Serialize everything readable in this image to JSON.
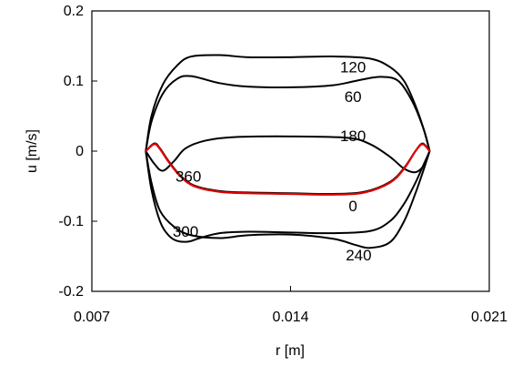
{
  "chart_data": {
    "type": "line",
    "title": "",
    "xlabel": "r  [m]",
    "ylabel": "u [m/s]",
    "xlim": [
      0.007,
      0.021
    ],
    "ylim": [
      -0.2,
      0.2
    ],
    "xticks": [
      "0.007",
      "0.014",
      "0.021"
    ],
    "yticks": [
      "0.2",
      "0.1",
      "0",
      "-0.1",
      "-0.2"
    ],
    "xtick_values": [
      0.007,
      0.014,
      0.021
    ],
    "ytick_values": [
      0.2,
      0.1,
      0,
      -0.1,
      -0.2
    ],
    "grid": false,
    "legend": "none",
    "series": [
      {
        "label": "0",
        "color": "#e00000",
        "label_at": [
          0.0162,
          -0.078
        ],
        "points": [
          [
            0.0089,
            0.0
          ],
          [
            0.0092,
            0.01
          ],
          [
            0.0094,
            0.003
          ],
          [
            0.0097,
            -0.015
          ],
          [
            0.0101,
            -0.035
          ],
          [
            0.0106,
            -0.05
          ],
          [
            0.0115,
            -0.058
          ],
          [
            0.0125,
            -0.06
          ],
          [
            0.014,
            -0.061
          ],
          [
            0.0155,
            -0.062
          ],
          [
            0.0166,
            -0.059
          ],
          [
            0.0175,
            -0.045
          ],
          [
            0.018,
            -0.025
          ],
          [
            0.0184,
            0.0
          ],
          [
            0.01865,
            0.01
          ],
          [
            0.0189,
            0.0
          ]
        ]
      },
      {
        "label": "60",
        "color": "#000000",
        "label_at": [
          0.0162,
          0.078
        ],
        "points": [
          [
            0.0089,
            0.0
          ],
          [
            0.0091,
            0.042
          ],
          [
            0.0095,
            0.082
          ],
          [
            0.01,
            0.103
          ],
          [
            0.0105,
            0.107
          ],
          [
            0.0115,
            0.097
          ],
          [
            0.0125,
            0.092
          ],
          [
            0.014,
            0.091
          ],
          [
            0.0155,
            0.094
          ],
          [
            0.0165,
            0.102
          ],
          [
            0.0172,
            0.106
          ],
          [
            0.0178,
            0.1
          ],
          [
            0.0183,
            0.07
          ],
          [
            0.0187,
            0.03
          ],
          [
            0.0189,
            0.0
          ]
        ]
      },
      {
        "label": "120",
        "color": "#000000",
        "label_at": [
          0.0162,
          0.12
        ],
        "points": [
          [
            0.0089,
            0.0
          ],
          [
            0.0091,
            0.05
          ],
          [
            0.0095,
            0.095
          ],
          [
            0.01,
            0.122
          ],
          [
            0.0105,
            0.135
          ],
          [
            0.0115,
            0.137
          ],
          [
            0.0125,
            0.134
          ],
          [
            0.014,
            0.134
          ],
          [
            0.0155,
            0.135
          ],
          [
            0.0168,
            0.132
          ],
          [
            0.0175,
            0.12
          ],
          [
            0.018,
            0.1
          ],
          [
            0.0184,
            0.065
          ],
          [
            0.0187,
            0.03
          ],
          [
            0.0189,
            0.0
          ]
        ]
      },
      {
        "label": "180",
        "color": "#000000",
        "label_at": [
          0.0162,
          0.022
        ],
        "points": [
          [
            0.0089,
            0.0
          ],
          [
            0.0092,
            -0.018
          ],
          [
            0.0095,
            -0.028
          ],
          [
            0.0099,
            -0.014
          ],
          [
            0.0103,
            0.004
          ],
          [
            0.011,
            0.015
          ],
          [
            0.012,
            0.02
          ],
          [
            0.014,
            0.021
          ],
          [
            0.016,
            0.019
          ],
          [
            0.0168,
            0.01
          ],
          [
            0.0175,
            -0.008
          ],
          [
            0.018,
            -0.025
          ],
          [
            0.0184,
            -0.03
          ],
          [
            0.0187,
            -0.02
          ],
          [
            0.0189,
            0.0
          ]
        ]
      },
      {
        "label": "240",
        "color": "#000000",
        "label_at": [
          0.0164,
          -0.148
        ],
        "points": [
          [
            0.0089,
            0.0
          ],
          [
            0.0091,
            -0.045
          ],
          [
            0.0094,
            -0.085
          ],
          [
            0.0099,
            -0.108
          ],
          [
            0.0105,
            -0.12
          ],
          [
            0.0115,
            -0.124
          ],
          [
            0.0125,
            -0.12
          ],
          [
            0.014,
            -0.119
          ],
          [
            0.0155,
            -0.125
          ],
          [
            0.0163,
            -0.134
          ],
          [
            0.0168,
            -0.138
          ],
          [
            0.0175,
            -0.13
          ],
          [
            0.018,
            -0.1
          ],
          [
            0.0184,
            -0.06
          ],
          [
            0.0187,
            -0.025
          ],
          [
            0.0189,
            0.0
          ]
        ]
      },
      {
        "label": "300",
        "color": "#000000",
        "label_at": [
          0.0103,
          -0.114
        ],
        "points": [
          [
            0.0089,
            0.0
          ],
          [
            0.0091,
            -0.055
          ],
          [
            0.0094,
            -0.1
          ],
          [
            0.0097,
            -0.12
          ],
          [
            0.01,
            -0.128
          ],
          [
            0.0104,
            -0.129
          ],
          [
            0.0108,
            -0.124
          ],
          [
            0.0115,
            -0.117
          ],
          [
            0.0125,
            -0.115
          ],
          [
            0.014,
            -0.116
          ],
          [
            0.0155,
            -0.117
          ],
          [
            0.0168,
            -0.114
          ],
          [
            0.0175,
            -0.1
          ],
          [
            0.018,
            -0.075
          ],
          [
            0.0184,
            -0.045
          ],
          [
            0.0187,
            -0.018
          ],
          [
            0.0189,
            0.0
          ]
        ]
      },
      {
        "label": "360",
        "color": "#000000",
        "label_at": [
          0.0104,
          -0.036
        ],
        "points": [
          [
            0.0089,
            0.0
          ],
          [
            0.0092,
            0.011
          ],
          [
            0.0094,
            0.004
          ],
          [
            0.0097,
            -0.014
          ],
          [
            0.0101,
            -0.034
          ],
          [
            0.0106,
            -0.049
          ],
          [
            0.0115,
            -0.057
          ],
          [
            0.0125,
            -0.059
          ],
          [
            0.014,
            -0.06
          ],
          [
            0.0155,
            -0.061
          ],
          [
            0.0166,
            -0.058
          ],
          [
            0.0175,
            -0.044
          ],
          [
            0.018,
            -0.024
          ],
          [
            0.0184,
            0.0
          ],
          [
            0.01865,
            0.011
          ],
          [
            0.0189,
            0.0
          ]
        ]
      }
    ]
  }
}
